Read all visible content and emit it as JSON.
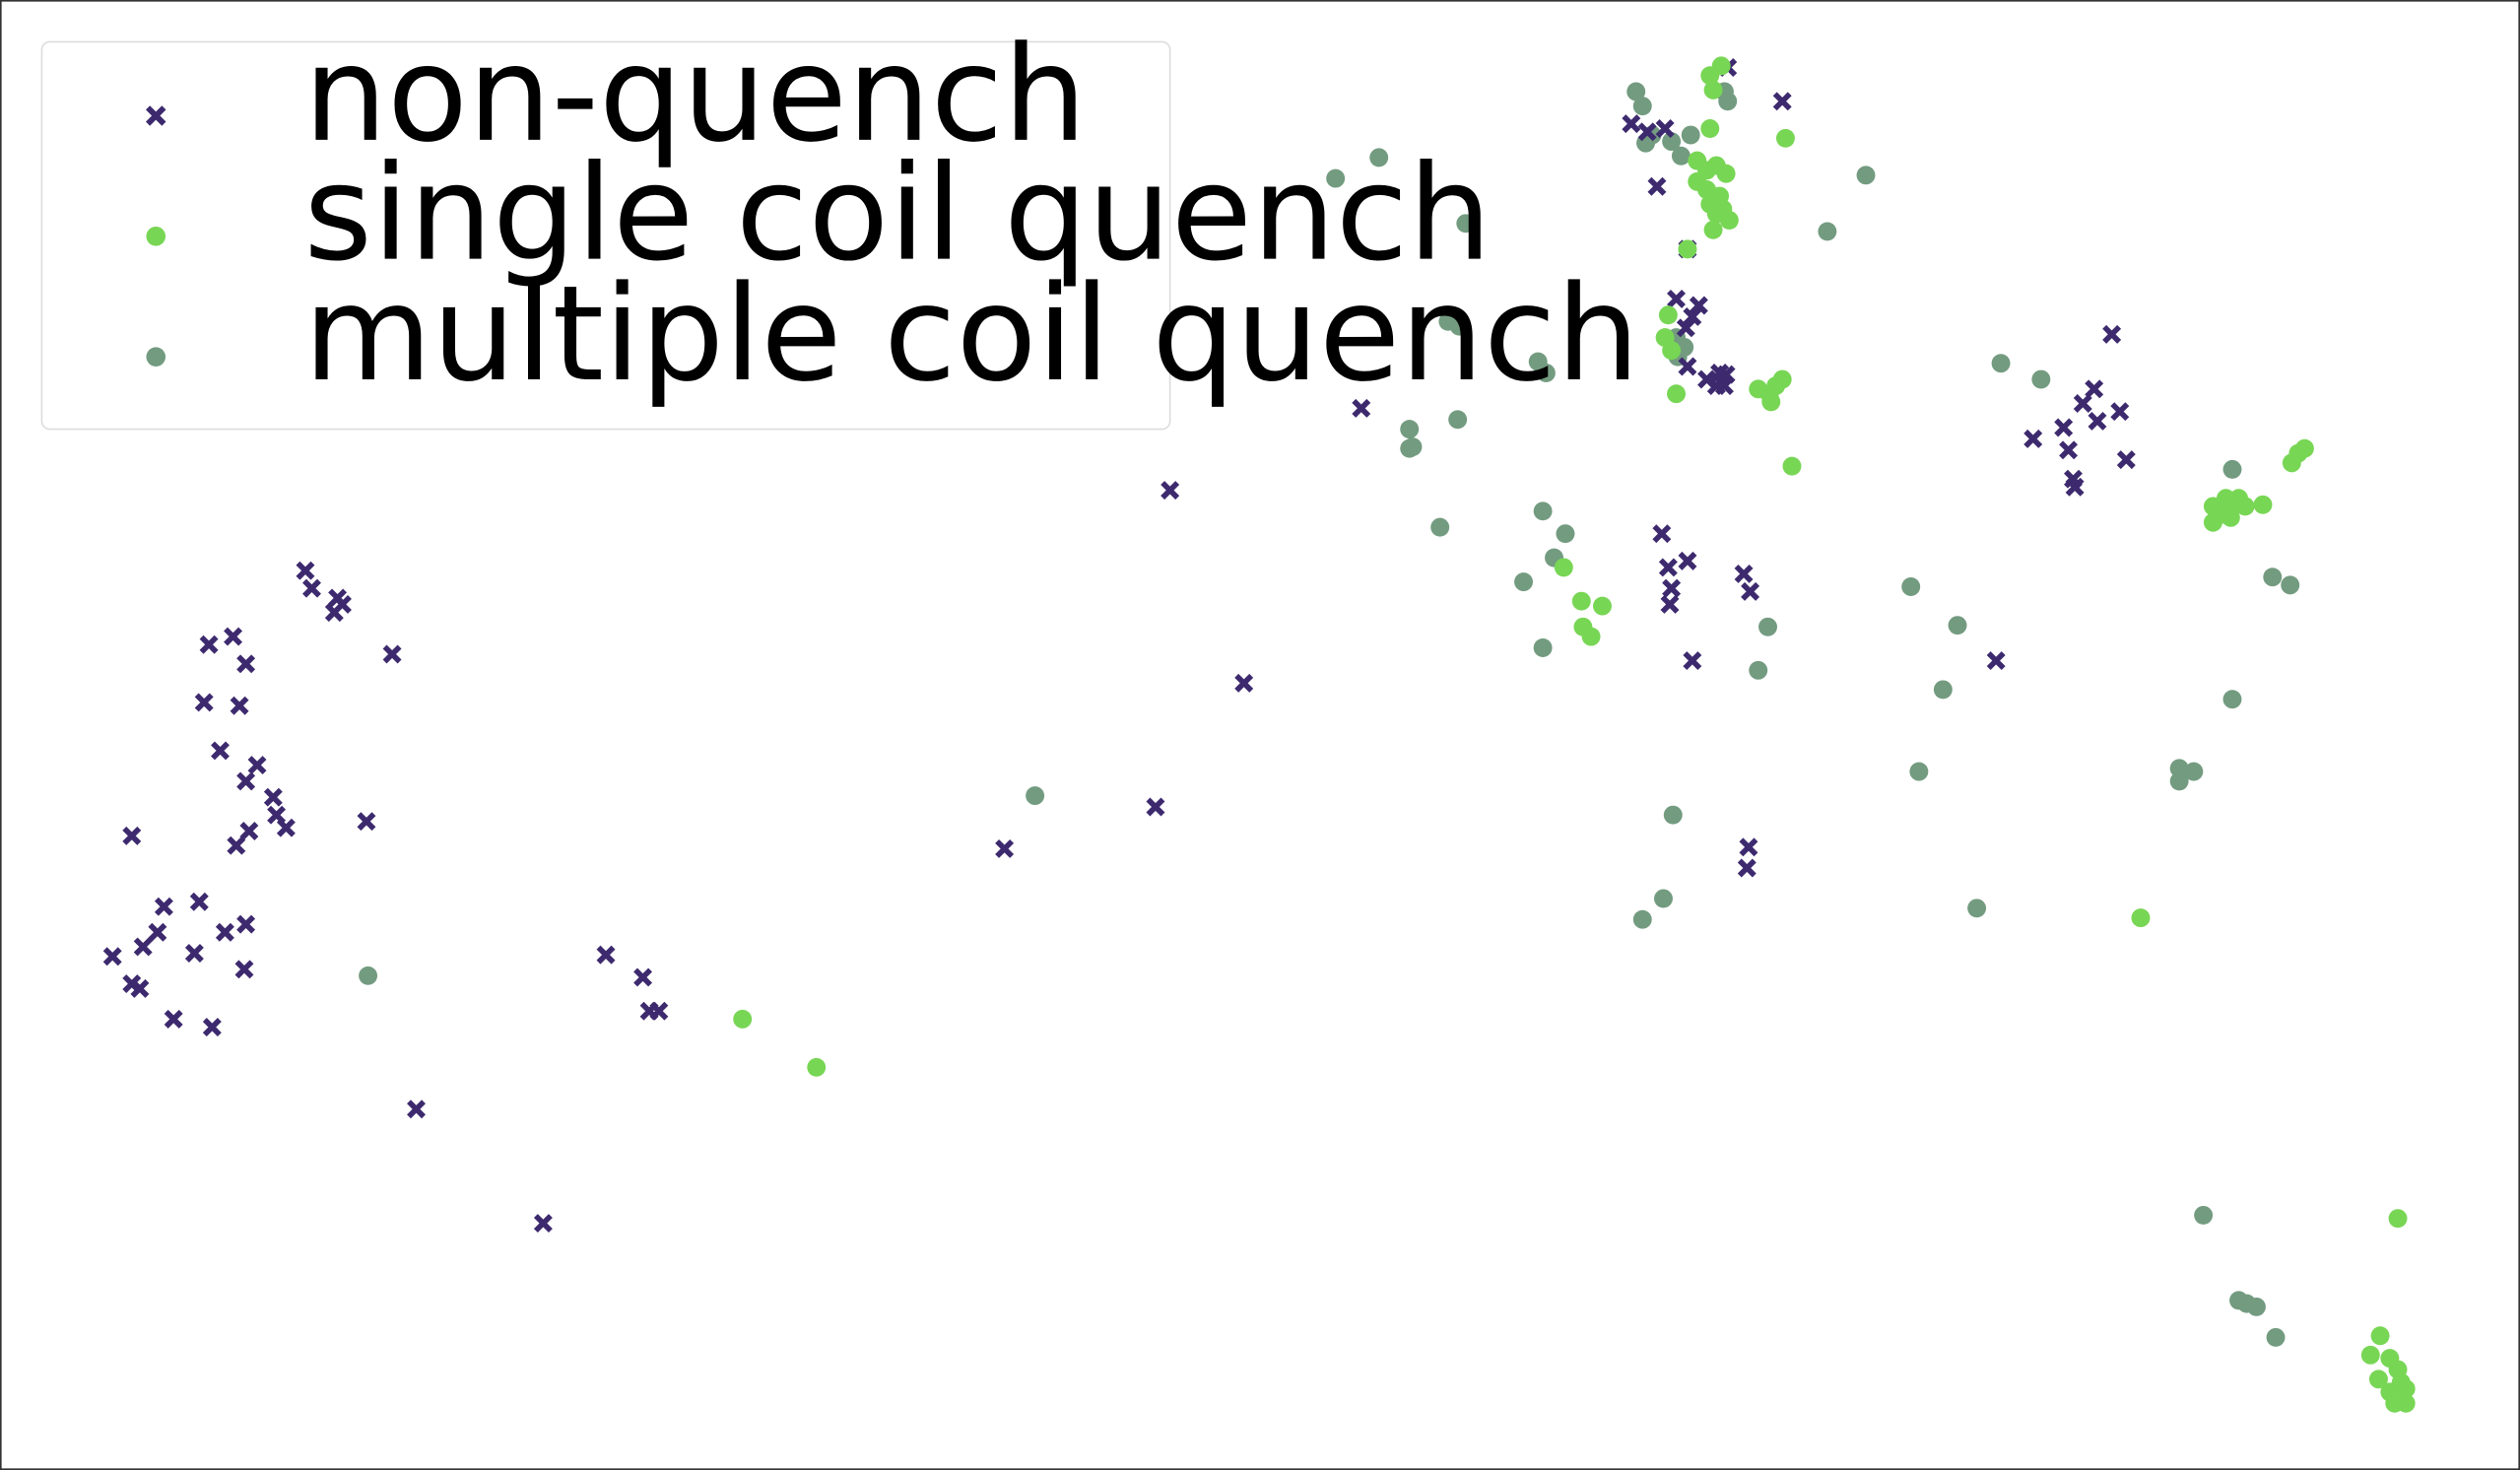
{
  "colors": {
    "non_quench": "#3d2a6e",
    "single_coil_quench": "#78d655",
    "multiple_coil_quench": "#739b80",
    "frame": "#333333",
    "legend_border": "#dddddd"
  },
  "chart_data": {
    "type": "scatter",
    "title": "",
    "xlabel": "",
    "ylabel": "",
    "xlim": [
      0,
      1568
    ],
    "ylim": [
      0,
      914
    ],
    "y_inverted": true,
    "grid": false,
    "axes_visible": false,
    "legend": {
      "placement": "top-left",
      "entries": [
        "non-quench",
        "single coil quench",
        "multiple coil quench"
      ]
    },
    "series": [
      {
        "name": "non-quench",
        "marker": "x",
        "points": [
          [
            190,
            355
          ],
          [
            194,
            366
          ],
          [
            210,
            372
          ],
          [
            213,
            376
          ],
          [
            208,
            381
          ],
          [
            244,
            407
          ],
          [
            130,
            401
          ],
          [
            145,
            396
          ],
          [
            153,
            413
          ],
          [
            127,
            437
          ],
          [
            149,
            439
          ],
          [
            137,
            467
          ],
          [
            160,
            476
          ],
          [
            153,
            486
          ],
          [
            170,
            496
          ],
          [
            172,
            507
          ],
          [
            178,
            515
          ],
          [
            155,
            517
          ],
          [
            147,
            526
          ],
          [
            228,
            511
          ],
          [
            82,
            520
          ],
          [
            102,
            564
          ],
          [
            124,
            561
          ],
          [
            153,
            575
          ],
          [
            140,
            580
          ],
          [
            98,
            580
          ],
          [
            89,
            589
          ],
          [
            70,
            595
          ],
          [
            121,
            593
          ],
          [
            82,
            612
          ],
          [
            87,
            615
          ],
          [
            152,
            603
          ],
          [
            108,
            634
          ],
          [
            132,
            639
          ],
          [
            259,
            690
          ],
          [
            338,
            761
          ],
          [
            377,
            594
          ],
          [
            400,
            608
          ],
          [
            404,
            629
          ],
          [
            410,
            629
          ],
          [
            625,
            528
          ],
          [
            719,
            502
          ],
          [
            774,
            425
          ],
          [
            728,
            305
          ],
          [
            847,
            254
          ],
          [
            1015,
            77
          ],
          [
            1025,
            82
          ],
          [
            1036,
            80
          ],
          [
            1031,
            116
          ],
          [
            1075,
            42
          ],
          [
            1109,
            63
          ],
          [
            1050,
            155
          ],
          [
            1043,
            186
          ],
          [
            1057,
            190
          ],
          [
            1053,
            197
          ],
          [
            1049,
            204
          ],
          [
            1050,
            228
          ],
          [
            1062,
            236
          ],
          [
            1070,
            232
          ],
          [
            1068,
            240
          ],
          [
            1074,
            233
          ],
          [
            1073,
            240
          ],
          [
            1034,
            332
          ],
          [
            1038,
            353
          ],
          [
            1050,
            349
          ],
          [
            1040,
            366
          ],
          [
            1039,
            376
          ],
          [
            1085,
            357
          ],
          [
            1089,
            368
          ],
          [
            1053,
            411
          ],
          [
            1088,
            527
          ],
          [
            1087,
            540
          ],
          [
            1242,
            411
          ],
          [
            1265,
            273
          ],
          [
            1284,
            266
          ],
          [
            1287,
            280
          ],
          [
            1290,
            298
          ],
          [
            1291,
            303
          ],
          [
            1296,
            251
          ],
          [
            1303,
            242
          ],
          [
            1305,
            262
          ],
          [
            1314,
            208
          ],
          [
            1319,
            256
          ],
          [
            1323,
            286
          ]
        ]
      },
      {
        "name": "single coil quench",
        "marker": "o",
        "points": [
          [
            1064,
            47
          ],
          [
            1071,
            41
          ],
          [
            1066,
            56
          ],
          [
            1064,
            80
          ],
          [
            1111,
            86
          ],
          [
            1056,
            100
          ],
          [
            1062,
            106
          ],
          [
            1068,
            103
          ],
          [
            1074,
            108
          ],
          [
            1056,
            113
          ],
          [
            1062,
            118
          ],
          [
            1070,
            122
          ],
          [
            1064,
            127
          ],
          [
            1072,
            130
          ],
          [
            1068,
            133
          ],
          [
            1076,
            137
          ],
          [
            1066,
            143
          ],
          [
            1050,
            155
          ],
          [
            1038,
            196
          ],
          [
            1036,
            210
          ],
          [
            1040,
            218
          ],
          [
            1043,
            245
          ],
          [
            1094,
            242
          ],
          [
            1101,
            245
          ],
          [
            1105,
            240
          ],
          [
            1109,
            236
          ],
          [
            1102,
            250
          ],
          [
            1115,
            290
          ],
          [
            973,
            353
          ],
          [
            984,
            374
          ],
          [
            997,
            377
          ],
          [
            985,
            390
          ],
          [
            990,
            396
          ],
          [
            462,
            634
          ],
          [
            508,
            664
          ],
          [
            1332,
            571
          ],
          [
            1377,
            315
          ],
          [
            1385,
            310
          ],
          [
            1391,
            312
          ],
          [
            1383,
            320
          ],
          [
            1377,
            325
          ],
          [
            1388,
            322
          ],
          [
            1397,
            315
          ],
          [
            1393,
            310
          ],
          [
            1408,
            314
          ],
          [
            1426,
            288
          ],
          [
            1430,
            282
          ],
          [
            1434,
            279
          ],
          [
            1492,
            758
          ],
          [
            1481,
            831
          ],
          [
            1475,
            843
          ],
          [
            1487,
            845
          ],
          [
            1492,
            852
          ],
          [
            1480,
            858
          ],
          [
            1494,
            860
          ],
          [
            1487,
            866
          ],
          [
            1497,
            864
          ],
          [
            1490,
            873
          ],
          [
            1497,
            873
          ]
        ]
      },
      {
        "name": "multiple coil quench",
        "marker": "o",
        "points": [
          [
            1018,
            57
          ],
          [
            1022,
            66
          ],
          [
            1028,
            84
          ],
          [
            1024,
            89
          ],
          [
            1040,
            88
          ],
          [
            1052,
            84
          ],
          [
            1046,
            97
          ],
          [
            1073,
            57
          ],
          [
            1075,
            63
          ],
          [
            831,
            111
          ],
          [
            858,
            98
          ],
          [
            912,
            139
          ],
          [
            1161,
            109
          ],
          [
            1137,
            144
          ],
          [
            901,
            200
          ],
          [
            908,
            203
          ],
          [
            957,
            225
          ],
          [
            962,
            232
          ],
          [
            877,
            267
          ],
          [
            879,
            278
          ],
          [
            877,
            279
          ],
          [
            907,
            261
          ],
          [
            896,
            328
          ],
          [
            960,
            318
          ],
          [
            974,
            332
          ],
          [
            967,
            347
          ],
          [
            948,
            362
          ],
          [
            960,
            403
          ],
          [
            1043,
            210
          ],
          [
            1048,
            216
          ],
          [
            1044,
            222
          ],
          [
            1100,
            390
          ],
          [
            1094,
            417
          ],
          [
            1041,
            507
          ],
          [
            1035,
            559
          ],
          [
            1022,
            572
          ],
          [
            644,
            495
          ],
          [
            229,
            607
          ],
          [
            1245,
            226
          ],
          [
            1270,
            236
          ],
          [
            1389,
            292
          ],
          [
            1189,
            365
          ],
          [
            1218,
            389
          ],
          [
            1209,
            429
          ],
          [
            1194,
            480
          ],
          [
            1230,
            565
          ],
          [
            1389,
            435
          ],
          [
            1414,
            359
          ],
          [
            1425,
            364
          ],
          [
            1356,
            478
          ],
          [
            1365,
            480
          ],
          [
            1356,
            486
          ],
          [
            1371,
            756
          ],
          [
            1393,
            809
          ],
          [
            1398,
            811
          ],
          [
            1404,
            813
          ],
          [
            1416,
            832
          ]
        ]
      }
    ]
  }
}
